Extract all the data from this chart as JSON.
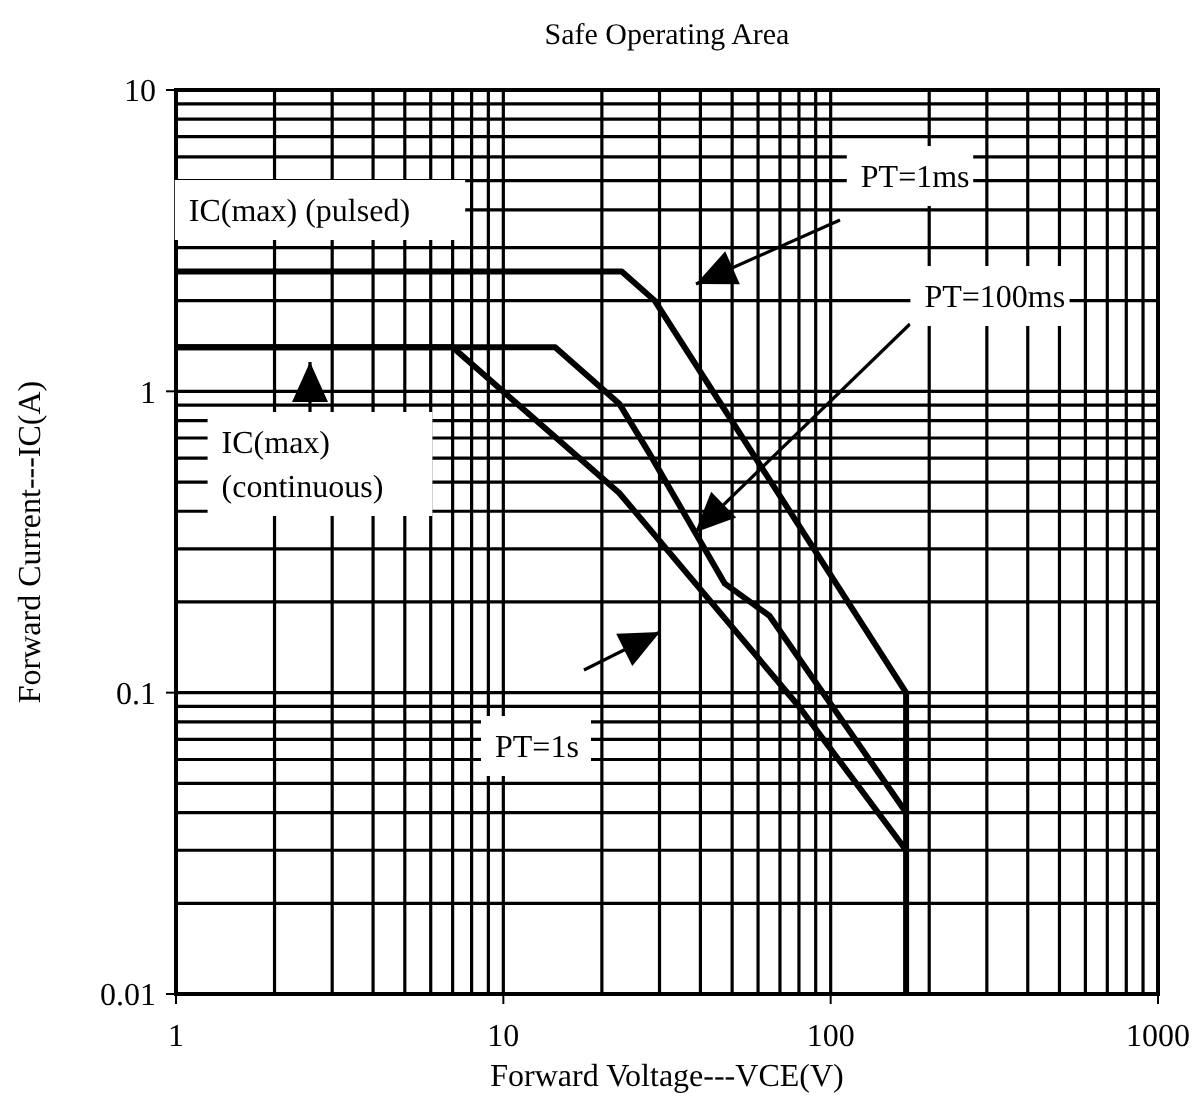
{
  "chart_data": {
    "type": "line",
    "title": "Safe Operating Area",
    "xlabel": "Forward Voltage---VCE(V)",
    "ylabel": "Forward Current---IC(A)",
    "log": "xy",
    "grid": true,
    "xlim": [
      1,
      1000
    ],
    "ylim": [
      0.01,
      10
    ],
    "xticks": [
      1,
      10,
      100,
      1000
    ],
    "yticks": [
      0.01,
      0.1,
      1,
      10
    ],
    "color": "#000000",
    "line_style": "solid",
    "marker": "none",
    "series": [
      {
        "x": [
          1,
          23,
          29,
          170,
          170
        ],
        "values": [
          2.5,
          2.5,
          2.0,
          0.1,
          0.01
        ]
      },
      {
        "x": [
          1,
          14.4,
          22.6,
          28,
          47.5,
          65,
          170
        ],
        "values": [
          1.4,
          1.4,
          0.91,
          0.62,
          0.23,
          0.18,
          0.04
        ]
      },
      {
        "x": [
          1,
          7,
          22.6,
          80,
          170
        ],
        "values": [
          1.4,
          1.4,
          0.46,
          0.09,
          0.03
        ]
      }
    ],
    "annotations": [
      "IC(max) (pulsed)",
      "IC(max)\n(continuous)",
      "PT=1ms",
      {
        "text": "PT=100ms",
        "x": 38.5,
        "y": 0.34
      },
      "PT=1s"
    ]
  }
}
